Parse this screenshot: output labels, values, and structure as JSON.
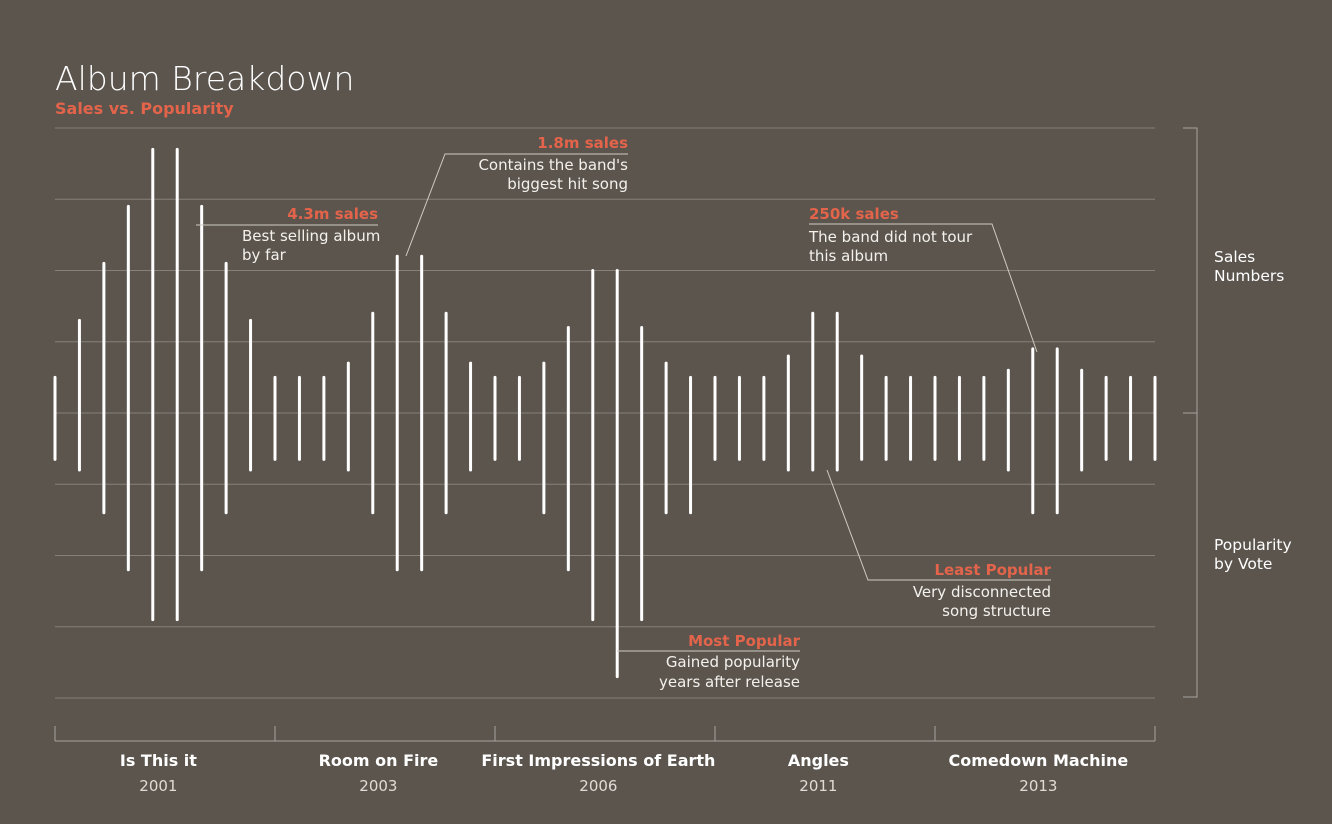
{
  "title": "Album Breakdown",
  "subtitle": "Sales vs. Popularity",
  "colors": {
    "background": "#5b554e",
    "bar": "#ffffff",
    "accent": "#e3644a",
    "grid": "#86807a"
  },
  "side_labels": {
    "top": [
      "Sales",
      "Numbers"
    ],
    "bottom": [
      "Popularity",
      "by Vote"
    ]
  },
  "chart_data": {
    "type": "bar",
    "title": "Album Breakdown",
    "subtitle": "Sales vs. Popularity",
    "series": [
      {
        "name": "Sales Numbers",
        "values": [
          0.5,
          1.3,
          2.1,
          2.9,
          3.7,
          3.7,
          2.9,
          2.1,
          1.3,
          0.5,
          0.5,
          0.5,
          0.7,
          1.4,
          2.2,
          2.2,
          1.4,
          0.7,
          0.5,
          0.5,
          0.7,
          1.2,
          2.0,
          2.0,
          1.2,
          0.7,
          0.5,
          0.5,
          0.5,
          0.5,
          0.8,
          1.4,
          1.4,
          0.8,
          0.5,
          0.5,
          0.5,
          0.5,
          0.5,
          0.6,
          0.9,
          0.9,
          0.6,
          0.5,
          0.5,
          0.5
        ]
      },
      {
        "name": "Popularity by Vote",
        "values": [
          0.65,
          0.8,
          1.4,
          2.2,
          2.9,
          2.9,
          2.2,
          1.4,
          0.8,
          0.65,
          0.65,
          0.65,
          0.8,
          1.4,
          2.2,
          2.2,
          1.4,
          0.8,
          0.65,
          0.65,
          1.4,
          2.2,
          2.9,
          3.7,
          2.9,
          1.4,
          1.4,
          0.65,
          0.65,
          0.65,
          0.8,
          0.8,
          0.8,
          0.65,
          0.65,
          0.65,
          0.65,
          0.65,
          0.65,
          0.8,
          1.4,
          1.4,
          0.8,
          0.65,
          0.65,
          0.65
        ]
      }
    ],
    "albums": [
      {
        "name": "Is This it",
        "year": "2001",
        "bar_range": [
          0,
          9
        ]
      },
      {
        "name": "Room on Fire",
        "year": "2003",
        "bar_range": [
          10,
          18
        ]
      },
      {
        "name": "First Impressions of Earth",
        "year": "2006",
        "bar_range": [
          19,
          28
        ]
      },
      {
        "name": "Angles",
        "year": "2011",
        "bar_range": [
          29,
          37
        ]
      },
      {
        "name": "Comedown Machine",
        "year": "2013",
        "bar_range": [
          38,
          45
        ]
      }
    ],
    "ylim": [
      -4,
      4
    ],
    "grid": true,
    "annotations": [
      {
        "heading": "4.3m sales",
        "lines": [
          "Best selling album",
          "by far"
        ],
        "album": "Is This it"
      },
      {
        "heading": "1.8m sales",
        "lines": [
          "Contains the band's",
          "biggest hit song"
        ],
        "album": "Room on Fire"
      },
      {
        "heading": "250k sales",
        "lines": [
          "The band did not tour",
          "this album"
        ],
        "album": "Comedown Machine"
      },
      {
        "heading": "Least Popular",
        "lines": [
          "Very disconnected",
          "song structure"
        ],
        "album": "Angles"
      },
      {
        "heading": "Most Popular",
        "lines": [
          "Gained popularity",
          "years after release"
        ],
        "album": "First Impressions of Earth"
      }
    ]
  }
}
